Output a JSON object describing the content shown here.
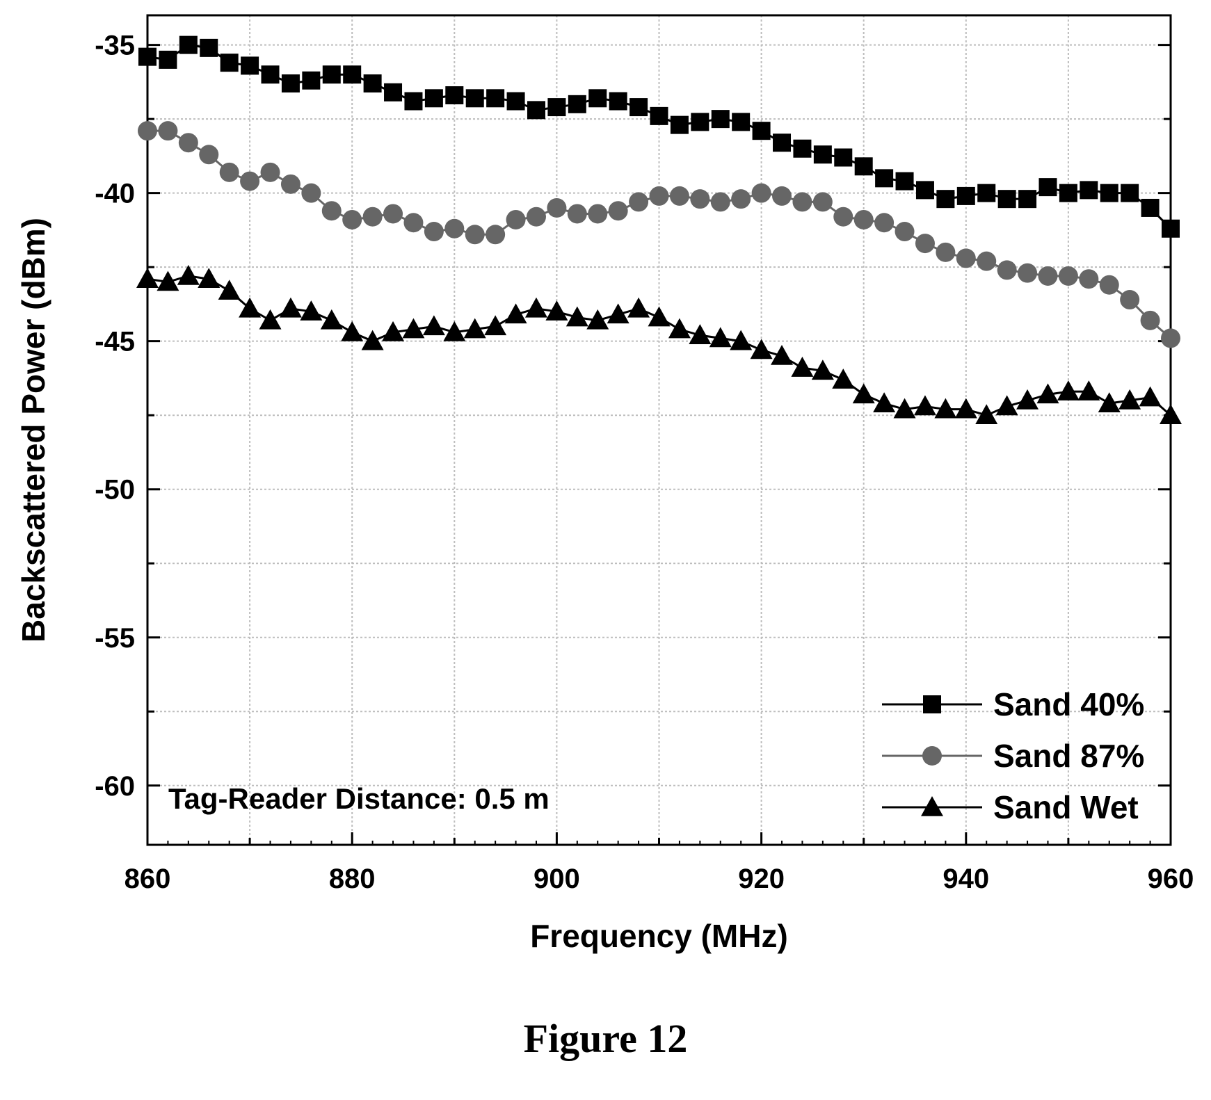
{
  "figure": {
    "caption": "Figure 12"
  },
  "chart_data": {
    "type": "line",
    "xlabel": "Frequency (MHz)",
    "ylabel": "Backscattered Power (dBm)",
    "xlim": [
      860,
      960
    ],
    "ylim": [
      -62,
      -34
    ],
    "xticks": [
      860,
      880,
      900,
      920,
      940,
      960
    ],
    "yticks": [
      -35,
      -40,
      -45,
      -50,
      -55,
      -60
    ],
    "xtick_labels": [
      "860",
      "880",
      "900",
      "920",
      "940",
      "960"
    ],
    "ytick_labels": [
      "-35",
      "-40",
      "-45",
      "-50",
      "-55",
      "-60"
    ],
    "grid": true,
    "legend_position": "bottom-right",
    "annotation": "Tag-Reader Distance: 0.5 m",
    "x": [
      860,
      862,
      864,
      866,
      868,
      870,
      872,
      874,
      876,
      878,
      880,
      882,
      884,
      886,
      888,
      890,
      892,
      894,
      896,
      898,
      900,
      902,
      904,
      906,
      908,
      910,
      912,
      914,
      916,
      918,
      920,
      922,
      924,
      926,
      928,
      930,
      932,
      934,
      936,
      938,
      940,
      942,
      944,
      946,
      948,
      950,
      952,
      954,
      956,
      958,
      960
    ],
    "series": [
      {
        "name": "Sand 40%",
        "marker": "square",
        "color": "#000000",
        "values": [
          -35.4,
          -35.5,
          -35.0,
          -35.1,
          -35.6,
          -35.7,
          -36.0,
          -36.3,
          -36.2,
          -36.0,
          -36.0,
          -36.3,
          -36.6,
          -36.9,
          -36.8,
          -36.7,
          -36.8,
          -36.8,
          -36.9,
          -37.2,
          -37.1,
          -37.0,
          -36.8,
          -36.9,
          -37.1,
          -37.4,
          -37.7,
          -37.6,
          -37.5,
          -37.6,
          -37.9,
          -38.3,
          -38.5,
          -38.7,
          -38.8,
          -39.1,
          -39.5,
          -39.6,
          -39.9,
          -40.2,
          -40.1,
          -40.0,
          -40.2,
          -40.2,
          -39.8,
          -40.0,
          -39.9,
          -40.0,
          -40.0,
          -40.5,
          -41.2
        ]
      },
      {
        "name": "Sand 87%",
        "marker": "circle",
        "color": "#666666",
        "values": [
          -37.9,
          -37.9,
          -38.3,
          -38.7,
          -39.3,
          -39.6,
          -39.3,
          -39.7,
          -40.0,
          -40.6,
          -40.9,
          -40.8,
          -40.7,
          -41.0,
          -41.3,
          -41.2,
          -41.4,
          -41.4,
          -40.9,
          -40.8,
          -40.5,
          -40.7,
          -40.7,
          -40.6,
          -40.3,
          -40.1,
          -40.1,
          -40.2,
          -40.3,
          -40.2,
          -40.0,
          -40.1,
          -40.3,
          -40.3,
          -40.8,
          -40.9,
          -41.0,
          -41.3,
          -41.7,
          -42.0,
          -42.2,
          -42.3,
          -42.6,
          -42.7,
          -42.8,
          -42.8,
          -42.9,
          -43.1,
          -43.6,
          -44.3,
          -44.9
        ]
      },
      {
        "name": "Sand Wet",
        "marker": "triangle",
        "color": "#000000",
        "values": [
          -42.9,
          -43.0,
          -42.8,
          -42.9,
          -43.3,
          -43.9,
          -44.3,
          -43.9,
          -44.0,
          -44.3,
          -44.7,
          -45.0,
          -44.7,
          -44.6,
          -44.5,
          -44.7,
          -44.6,
          -44.5,
          -44.1,
          -43.9,
          -44.0,
          -44.2,
          -44.3,
          -44.1,
          -43.9,
          -44.2,
          -44.6,
          -44.8,
          -44.9,
          -45.0,
          -45.3,
          -45.5,
          -45.9,
          -46.0,
          -46.3,
          -46.8,
          -47.1,
          -47.3,
          -47.2,
          -47.3,
          -47.3,
          -47.5,
          -47.2,
          -47.0,
          -46.8,
          -46.7,
          -46.7,
          -47.1,
          -47.0,
          -46.9,
          -47.5
        ]
      }
    ]
  }
}
